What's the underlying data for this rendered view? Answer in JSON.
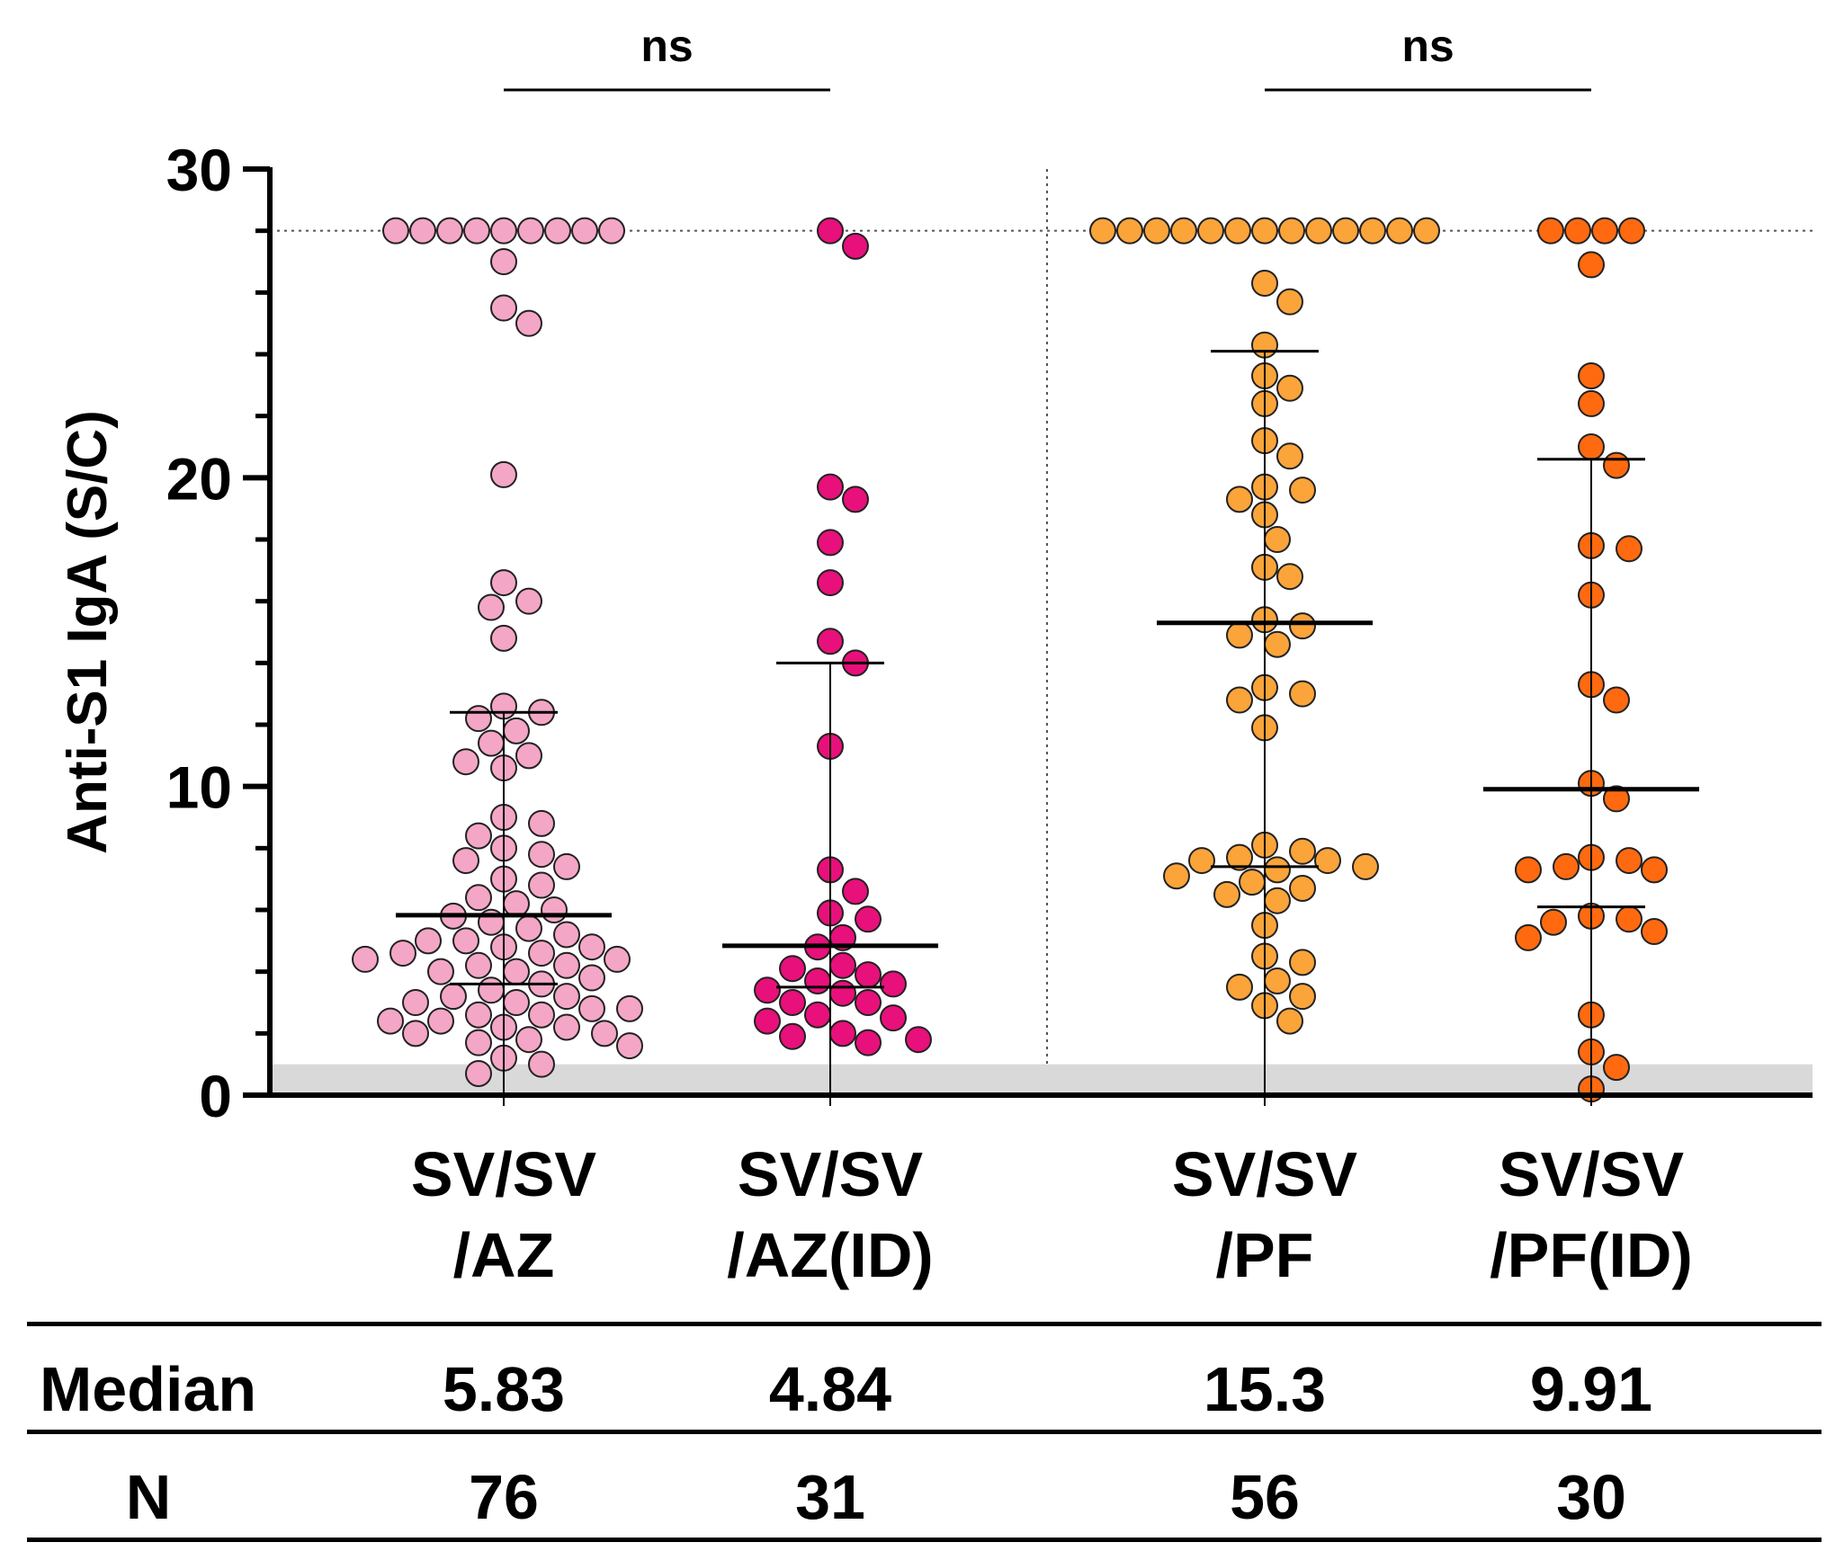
{
  "chart_data": {
    "type": "scatter",
    "ylabel": "Anti-S1 IgA (S/C)",
    "ylim": [
      0,
      30
    ],
    "y_ticks": [
      "0",
      "10",
      "20",
      "30"
    ],
    "cutoff_line": 28,
    "shaded_band": [
      0,
      1
    ],
    "groups": [
      {
        "name": "SV/SV/AZ",
        "label_line1": "SV/SV",
        "label_line2": "/AZ",
        "color": "#F4A6C6",
        "median": 5.83,
        "iqr": [
          3.6,
          12.4
        ],
        "n": 76,
        "values": [
          28,
          28,
          28,
          28,
          28,
          28,
          28,
          28,
          28,
          27.0,
          25.5,
          25.0,
          20.1,
          16.6,
          16.0,
          15.8,
          14.8,
          12.6,
          12.4,
          12.2,
          11.8,
          11.4,
          11.0,
          10.8,
          10.6,
          9.0,
          8.8,
          8.4,
          8.0,
          7.8,
          7.6,
          7.4,
          7.0,
          6.8,
          6.4,
          6.2,
          6.0,
          5.8,
          5.6,
          5.4,
          5.2,
          5.0,
          5.0,
          4.8,
          4.8,
          4.6,
          4.6,
          4.4,
          4.4,
          4.2,
          4.2,
          4.0,
          4.0,
          3.8,
          3.6,
          3.4,
          3.2,
          3.2,
          3.0,
          3.0,
          2.8,
          2.8,
          2.6,
          2.6,
          2.4,
          2.4,
          2.2,
          2.2,
          2.0,
          2.0,
          1.8,
          1.7,
          1.6,
          1.2,
          1.0,
          0.7
        ]
      },
      {
        "name": "SV/SV/AZ(ID)",
        "label_line1": "SV/SV",
        "label_line2": "/AZ(ID)",
        "color": "#E8107A",
        "median": 4.84,
        "iqr": [
          3.5,
          14.0
        ],
        "n": 31,
        "values": [
          28,
          27.5,
          19.7,
          19.3,
          17.9,
          16.6,
          14.7,
          14.0,
          11.3,
          7.3,
          6.6,
          5.9,
          5.7,
          5.1,
          4.8,
          4.2,
          4.1,
          3.9,
          3.7,
          3.6,
          3.4,
          3.3,
          3.0,
          3.0,
          2.6,
          2.5,
          2.4,
          2.0,
          1.9,
          1.8,
          1.7
        ]
      },
      {
        "name": "SV/SV/PF",
        "label_line1": "SV/SV",
        "label_line2": "/PF",
        "color": "#FAA43A",
        "median": 15.3,
        "iqr": [
          7.4,
          24.1
        ],
        "n": 56,
        "values": [
          28,
          28,
          28,
          28,
          28,
          28,
          28,
          28,
          28,
          28,
          28,
          28,
          28,
          26.3,
          25.7,
          24.3,
          23.3,
          22.9,
          22.4,
          21.2,
          20.7,
          19.7,
          19.6,
          19.3,
          18.8,
          18.0,
          17.1,
          16.8,
          15.4,
          15.2,
          14.9,
          14.6,
          13.2,
          13.0,
          12.8,
          11.9,
          8.1,
          7.9,
          7.7,
          7.6,
          7.6,
          7.4,
          7.3,
          7.1,
          6.9,
          6.7,
          6.5,
          6.3,
          5.5,
          4.5,
          4.3,
          3.7,
          3.5,
          3.2,
          2.9,
          2.4
        ]
      },
      {
        "name": "SV/SV/PF(ID)",
        "label_line1": "SV/SV",
        "label_line2": "/PF(ID)",
        "color": "#FF6A10",
        "median": 9.91,
        "iqr": [
          6.1,
          20.6
        ],
        "n": 30,
        "values": [
          28,
          28,
          28,
          28,
          26.9,
          23.3,
          22.4,
          21.0,
          20.4,
          17.8,
          17.7,
          16.2,
          13.3,
          12.8,
          10.1,
          9.6,
          7.7,
          7.6,
          7.4,
          7.3,
          7.3,
          5.8,
          5.7,
          5.6,
          5.3,
          5.1,
          2.6,
          1.4,
          0.9,
          0.2
        ]
      }
    ],
    "comparisons": [
      {
        "label": "ns",
        "from": 0,
        "to": 1
      },
      {
        "label": "ns",
        "from": 2,
        "to": 3
      }
    ]
  },
  "table": {
    "row_labels": {
      "median": "Median",
      "n": "N"
    },
    "medians": [
      "5.83",
      "4.84",
      "15.3",
      "9.91"
    ],
    "counts": [
      "76",
      "31",
      "56",
      "30"
    ]
  }
}
